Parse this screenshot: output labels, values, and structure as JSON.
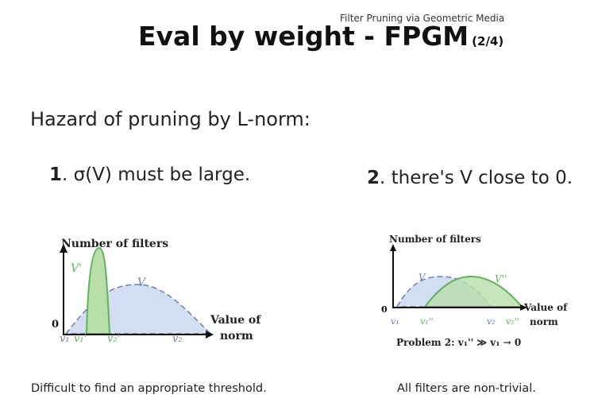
{
  "header": {
    "top_label": "Filter Pruning via Geometric Media",
    "title": "Eval by weight - FPGM",
    "part": "(2/4)"
  },
  "heading": "Hazard of pruning by L-norm:",
  "points": [
    {
      "number": "1",
      "text": ". σ(V) must be large."
    },
    {
      "number": "2",
      "text": ". there's V close to 0."
    }
  ],
  "figures": [
    {
      "y_axis_label": "Number of filters",
      "x_axis_label_1": "Value of",
      "x_axis_label_2": "norm",
      "origin_label": "0",
      "curve_v_prime": "V'",
      "curve_v": "V",
      "ticks": [
        "v₁",
        "v₁'",
        "v₂'",
        "v₂"
      ]
    },
    {
      "y_axis_label": "Number of filters",
      "x_axis_label_1": "Value of",
      "x_axis_label_2": "norm",
      "origin_label": "0",
      "curve_v": "V",
      "curve_v_double_prime": "V''",
      "ticks": [
        "v₁",
        "v₁''",
        "v₂",
        "v₂''"
      ],
      "problem": "Problem 2: v₁'' ≫ v₁ → 0"
    }
  ],
  "captions": [
    "Difficult to find an appropriate threshold.",
    "All filters are non-trivial."
  ],
  "colors": {
    "blue_fill": "#d4def3",
    "blue_stroke": "#6c7fb5",
    "green_fill": "#b8deaa",
    "green_stroke": "#5fb45a"
  }
}
